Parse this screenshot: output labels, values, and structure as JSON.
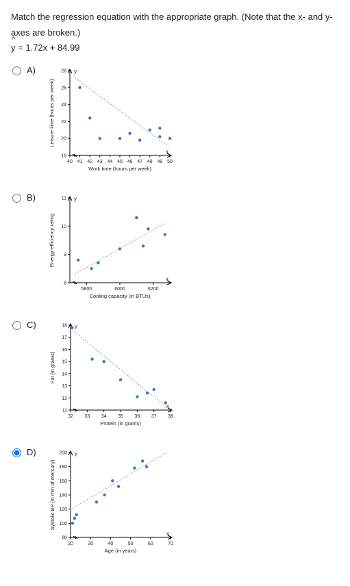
{
  "prompt_line1": "Match the regression equation with the appropriate graph. (Note that the x- and y-",
  "prompt_line2": "axes are broken.)",
  "equation_rhs": " = 1.72x + 84.99",
  "y_var": "y",
  "choices": {
    "a": {
      "label": "A)",
      "chart": {
        "type": "scatter",
        "xlim": [
          40,
          50
        ],
        "ylim": [
          18,
          28
        ],
        "xticks": [
          40,
          41,
          42,
          43,
          44,
          45,
          46,
          47,
          48,
          49,
          50
        ],
        "yticks": [
          18,
          20,
          22,
          24,
          26,
          28
        ],
        "xlabel": "Work time (hours per week)",
        "ylabel": "Leisure time (hours per week)",
        "trend": "down",
        "trend_pts": [
          [
            40.3,
            27.3
          ],
          [
            49.7,
            19.2
          ]
        ],
        "points": [
          [
            41,
            26
          ],
          [
            42,
            22.4
          ],
          [
            43,
            20
          ],
          [
            45,
            20
          ],
          [
            46,
            20.6
          ],
          [
            47,
            19.8
          ],
          [
            48,
            21
          ],
          [
            49,
            21.2
          ],
          [
            49,
            20.2
          ],
          [
            50,
            20
          ]
        ],
        "point_color": "#3b73c8",
        "background_color": "#ffffff"
      }
    },
    "b": {
      "label": "B)",
      "chart": {
        "type": "scatter",
        "xlim": [
          5700,
          6300
        ],
        "ylim": [
          8,
          11
        ],
        "xticks": [
          5800,
          6000,
          6200
        ],
        "yticks": [
          8,
          9,
          10,
          11
        ],
        "xlabel": "Cooling capacity (in BTUs)",
        "ylabel": "Energy-efficiency rating",
        "trend": "up",
        "trend_pts": [
          [
            5730,
            8.3
          ],
          [
            6270,
            10.1
          ]
        ],
        "points": [
          [
            5750,
            8.8
          ],
          [
            5830,
            8.5
          ],
          [
            5870,
            8.7
          ],
          [
            6000,
            9.2
          ],
          [
            6100,
            10.3
          ],
          [
            6140,
            9.3
          ],
          [
            6170,
            9.9
          ],
          [
            6270,
            9.7
          ]
        ],
        "point_color": "#3b73c8",
        "background_color": "#ffffff"
      }
    },
    "c": {
      "label": "C)",
      "chart": {
        "type": "scatter",
        "xlim": [
          32,
          38
        ],
        "ylim": [
          11,
          18
        ],
        "xticks": [
          32,
          33,
          34,
          35,
          36,
          37,
          38
        ],
        "yticks": [
          11,
          12,
          13,
          14,
          15,
          16,
          17,
          18
        ],
        "xlabel": "Protein (in grams)",
        "ylabel": "Fat (in grams)",
        "trend": "down",
        "trend_pts": [
          [
            32.1,
            17.6
          ],
          [
            37.8,
            11.2
          ]
        ],
        "points": [
          [
            32.1,
            17.8
          ],
          [
            33.3,
            15.2
          ],
          [
            34,
            15.0
          ],
          [
            35,
            13.5
          ],
          [
            36,
            12.1
          ],
          [
            36.6,
            12.4
          ],
          [
            37,
            12.7
          ],
          [
            37.7,
            11.6
          ]
        ],
        "point_color": "#3b73c8",
        "background_color": "#ffffff"
      }
    },
    "d": {
      "label": "D)",
      "chart": {
        "type": "scatter",
        "xlim": [
          20,
          70
        ],
        "ylim": [
          80,
          200
        ],
        "xticks": [
          20,
          30,
          40,
          50,
          60,
          70
        ],
        "yticks": [
          80,
          100,
          120,
          140,
          160,
          180,
          200
        ],
        "xlabel": "Age (in years)",
        "ylabel": "Systolic BP (in mm of mercury)",
        "trend": "up",
        "trend_pts": [
          [
            21,
            121
          ],
          [
            68,
            200
          ]
        ],
        "points": [
          [
            21,
            100
          ],
          [
            22,
            107
          ],
          [
            23,
            112
          ],
          [
            33,
            130
          ],
          [
            37,
            140
          ],
          [
            41,
            160
          ],
          [
            44,
            152
          ],
          [
            52,
            178
          ],
          [
            56,
            188
          ],
          [
            58,
            180
          ]
        ],
        "point_color": "#3b73c8",
        "background_color": "#ffffff"
      }
    }
  },
  "selected": "d"
}
